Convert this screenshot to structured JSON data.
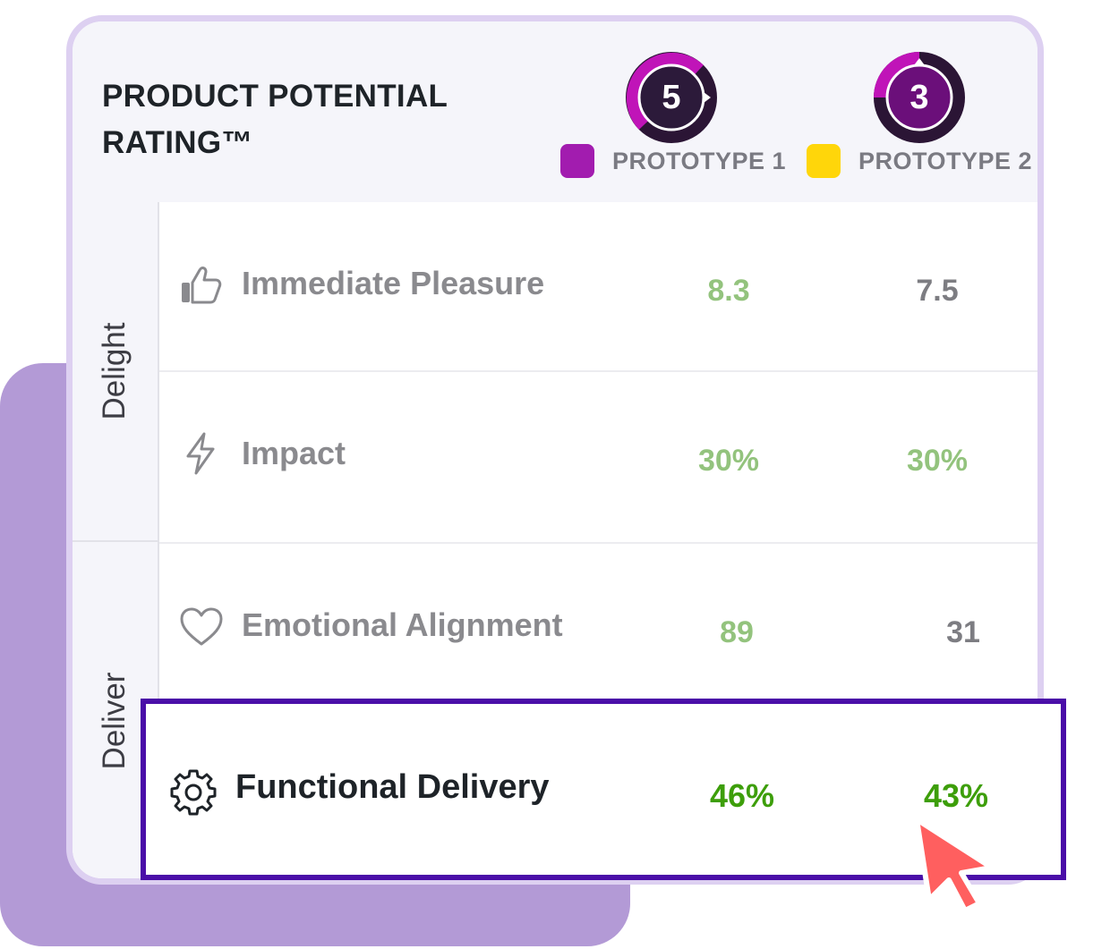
{
  "title": "PRODUCT POTENTIAL RATING™",
  "prototypes": [
    {
      "score": "5",
      "label": "PROTOTYPE 1",
      "color": "#a21caf"
    },
    {
      "score": "3",
      "label": "PROTOTYPE 2",
      "color": "#ffd60a"
    }
  ],
  "groups": [
    {
      "label": "Delight"
    },
    {
      "label": "Deliver"
    }
  ],
  "metrics": [
    {
      "label": "Immediate Pleasure",
      "icon": "thumbs-up-icon",
      "p1": "8.3",
      "p2": "7.5"
    },
    {
      "label": "Impact",
      "icon": "lightning-icon",
      "p1": "30%",
      "p2": "30%"
    },
    {
      "label": "Emotional Alignment",
      "icon": "heart-icon",
      "p1": "89",
      "p2": "31"
    },
    {
      "label": "Functional Delivery",
      "icon": "gear-icon",
      "p1": "46%",
      "p2": "43%"
    }
  ],
  "colors": {
    "accent": "#4a0ea8",
    "good": "#93c37d",
    "strong_good": "#3d9e0a",
    "neutral": "#7d7d82"
  }
}
